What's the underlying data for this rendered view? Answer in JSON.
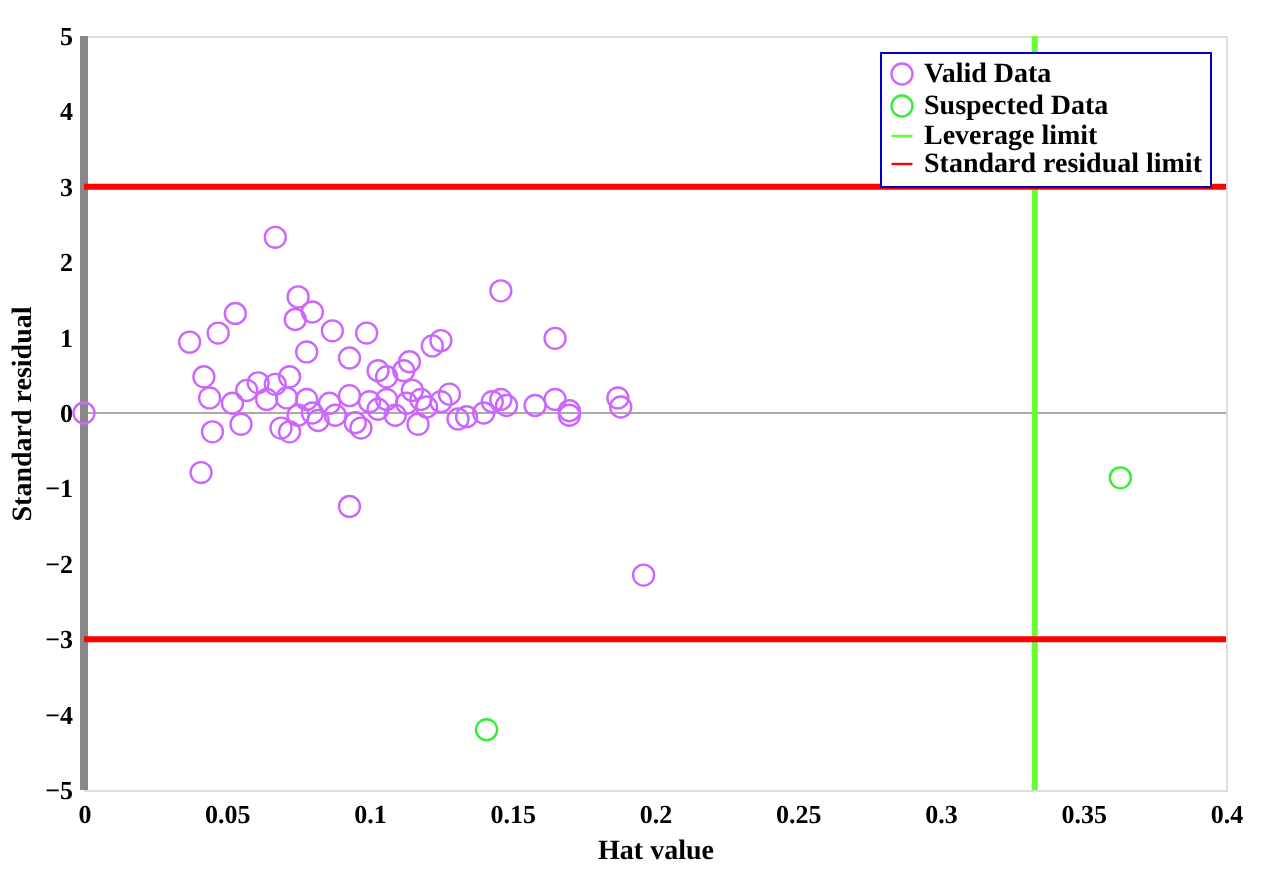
{
  "chart_data": {
    "type": "scatter",
    "xlabel": "Hat value",
    "ylabel": "Standard residual",
    "xlim": [
      0,
      0.4
    ],
    "ylim": [
      -5,
      5
    ],
    "xticks": [
      0,
      0.05,
      0.1,
      0.15,
      0.2,
      0.25,
      0.3,
      0.35,
      0.4
    ],
    "yticks": [
      -5,
      -4,
      -3,
      -2,
      -1,
      0,
      1,
      2,
      3,
      4,
      5
    ],
    "grid": false,
    "marker": "circle",
    "legend": "top right",
    "series": [
      {
        "name": "Valid Data",
        "color": "#cc66ff",
        "x": [
          0,
          0.037,
          0.047,
          0.053,
          0.067,
          0.075,
          0.08,
          0.074,
          0.087,
          0.099,
          0.078,
          0.093,
          0.103,
          0.106,
          0.112,
          0.122,
          0.125,
          0.146,
          0.165,
          0.187,
          0.188,
          0.196,
          0.093,
          0.041,
          0.042,
          0.045,
          0.044,
          0.055,
          0.052,
          0.057,
          0.061,
          0.064,
          0.067,
          0.071,
          0.072,
          0.075,
          0.069,
          0.072,
          0.078,
          0.08,
          0.082,
          0.086,
          0.088,
          0.093,
          0.095,
          0.097,
          0.1,
          0.103,
          0.106,
          0.109,
          0.113,
          0.115,
          0.118,
          0.12,
          0.125,
          0.128,
          0.131,
          0.134,
          0.14,
          0.143,
          0.146,
          0.148,
          0.158,
          0.165,
          0.17,
          0.17,
          0.117,
          0.114
        ],
        "values": [
          0,
          0.94,
          1.06,
          1.32,
          2.33,
          1.54,
          1.34,
          1.24,
          1.09,
          1.06,
          0.81,
          0.73,
          0.56,
          0.48,
          0.56,
          0.89,
          0.96,
          1.62,
          0.99,
          0.2,
          0.08,
          -2.15,
          -1.24,
          -0.79,
          0.48,
          -0.25,
          0.2,
          -0.15,
          0.13,
          0.3,
          0.4,
          0.18,
          0.38,
          0.2,
          0.48,
          -0.03,
          -0.2,
          -0.25,
          0.18,
          0,
          -0.1,
          0.13,
          -0.03,
          0.23,
          -0.13,
          -0.2,
          0.15,
          0.05,
          0.18,
          -0.03,
          0.13,
          0.3,
          0.18,
          0.08,
          0.15,
          0.25,
          -0.08,
          -0.05,
          0,
          0.15,
          0.18,
          0.1,
          0.1,
          0.18,
          0.03,
          -0.03,
          -0.15,
          0.68
        ]
      },
      {
        "name": "Suspected Data",
        "color": "#33ee33",
        "x": [
          0.141,
          0.363
        ],
        "values": [
          -4.2,
          -0.86
        ]
      }
    ],
    "ref_lines": [
      {
        "axis": "x",
        "value": 0.333,
        "label": "Leverage limit",
        "color": "#66ff33"
      },
      {
        "axis": "y",
        "value": 3,
        "label": "Standard residual limit",
        "color": "#ff0000"
      },
      {
        "axis": "y",
        "value": -3,
        "color": "#ff0000"
      }
    ]
  }
}
